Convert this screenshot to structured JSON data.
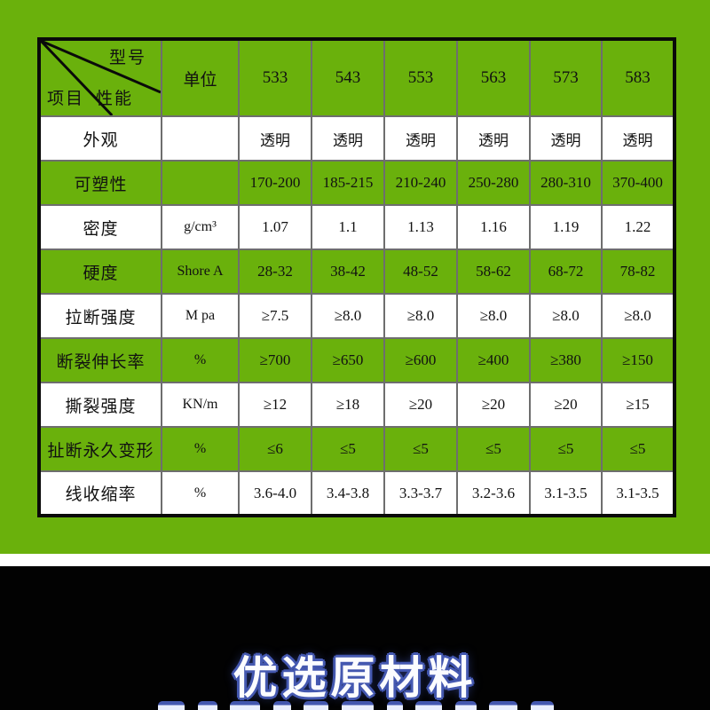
{
  "colors": {
    "background_green": "#6ab10c",
    "grid_gray": "#6e6e6e",
    "table_border_black": "#0a0a0a",
    "row_white": "#ffffff",
    "banner_background": "#020202",
    "banner_text_fill": "#fbfcff",
    "banner_text_outline": "#4458b0"
  },
  "chart_data": {
    "type": "table",
    "corner": {
      "model": "型号",
      "performance": "性能",
      "item": "项目"
    },
    "unit_header": "单位",
    "model_columns": [
      "533",
      "543",
      "553",
      "563",
      "573",
      "583"
    ],
    "rows": [
      {
        "property": "外观",
        "unit": "",
        "values": [
          "透明",
          "透明",
          "透明",
          "透明",
          "透明",
          "透明"
        ]
      },
      {
        "property": "可塑性",
        "unit": "",
        "values": [
          "170-200",
          "185-215",
          "210-240",
          "250-280",
          "280-310",
          "370-400"
        ]
      },
      {
        "property": "密度",
        "unit": "g/cm³",
        "values": [
          "1.07",
          "1.1",
          "1.13",
          "1.16",
          "1.19",
          "1.22"
        ]
      },
      {
        "property": "硬度",
        "unit": "Shore A",
        "values": [
          "28-32",
          "38-42",
          "48-52",
          "58-62",
          "68-72",
          "78-82"
        ]
      },
      {
        "property": "拉断强度",
        "unit": "M pa",
        "values": [
          "≥7.5",
          "≥8.0",
          "≥8.0",
          "≥8.0",
          "≥8.0",
          "≥8.0"
        ]
      },
      {
        "property": "断裂伸长率",
        "unit": "%",
        "values": [
          "≥700",
          "≥650",
          "≥600",
          "≥400",
          "≥380",
          "≥150"
        ]
      },
      {
        "property": "撕裂强度",
        "unit": "KN/m",
        "values": [
          "≥12",
          "≥18",
          "≥20",
          "≥20",
          "≥20",
          "≥15"
        ]
      },
      {
        "property": "扯断永久变形",
        "unit": "%",
        "values": [
          "≤6",
          "≤5",
          "≤5",
          "≤5",
          "≤5",
          "≤5"
        ]
      },
      {
        "property": "线收缩率",
        "unit": "%",
        "values": [
          "3.6-4.0",
          "3.4-3.8",
          "3.3-3.7",
          "3.2-3.6",
          "3.1-3.5",
          "3.1-3.5"
        ]
      }
    ]
  },
  "banner": {
    "title": "优选原材料"
  }
}
